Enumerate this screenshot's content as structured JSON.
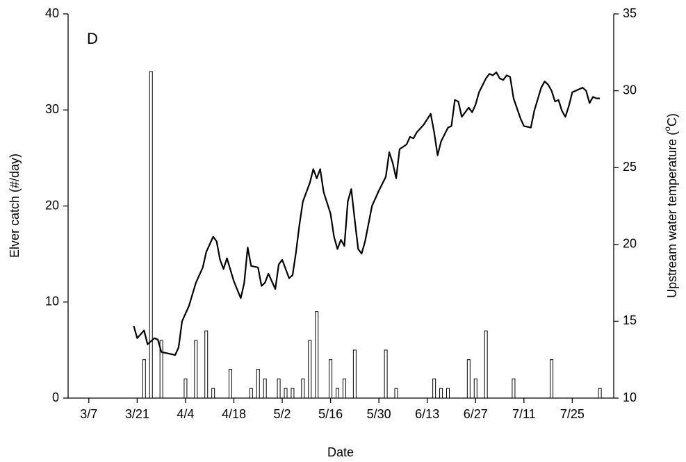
{
  "chart_data": {
    "type": "bar",
    "annotation": "D",
    "xlabel": "Date",
    "ylabel": "Elver catch (#/day)",
    "y2label": {
      "text": "Upstream water temperature (",
      "sup": "o",
      "tail": "C)"
    },
    "xlim": [
      "3/1",
      "8/6"
    ],
    "xticks": [
      "3/7",
      "3/21",
      "4/4",
      "4/18",
      "5/2",
      "5/16",
      "5/30",
      "6/13",
      "6/27",
      "7/11",
      "7/25"
    ],
    "ylim": [
      0,
      40
    ],
    "yticks": [
      0,
      10,
      20,
      30,
      40
    ],
    "y2lim": [
      10,
      35
    ],
    "y2ticks": [
      10,
      15,
      20,
      25,
      30,
      35
    ],
    "series": [
      {
        "type": "bar",
        "color": "#ffffff",
        "x": [
          "3/23",
          "3/25",
          "3/28",
          "4/4",
          "4/7",
          "4/10",
          "4/12",
          "4/17",
          "4/23",
          "4/25",
          "4/27",
          "5/1",
          "5/3",
          "5/5",
          "5/8",
          "5/10",
          "5/12",
          "5/16",
          "5/18",
          "5/20",
          "5/23",
          "6/1",
          "6/4",
          "6/15",
          "6/17",
          "6/19",
          "6/25",
          "6/27",
          "6/30",
          "7/8",
          "7/19",
          "8/2"
        ],
        "values": [
          4,
          34,
          6,
          2,
          6,
          7,
          1,
          3,
          1,
          3,
          2,
          2,
          1,
          1,
          2,
          6,
          9,
          4,
          1,
          2,
          5,
          5,
          1,
          2,
          1,
          1,
          4,
          2,
          7,
          2,
          4,
          1
        ]
      },
      {
        "type": "line",
        "axis": "y2",
        "color": "#000000",
        "x": [
          "3/20",
          "3/21",
          "3/23",
          "3/24",
          "3/26",
          "3/27",
          "3/28",
          "3/30",
          "4/1",
          "4/2",
          "4/3",
          "4/5",
          "4/7",
          "4/9",
          "4/10",
          "4/12",
          "4/13",
          "4/14",
          "4/15",
          "4/16",
          "4/18",
          "4/20",
          "4/21",
          "4/22",
          "4/23",
          "4/25",
          "4/26",
          "4/27",
          "4/28",
          "4/30",
          "5/1",
          "5/2",
          "5/4",
          "5/5",
          "5/6",
          "5/7",
          "5/8",
          "5/10",
          "5/11",
          "5/12",
          "5/13",
          "5/14",
          "5/16",
          "5/17",
          "5/18",
          "5/19",
          "5/20",
          "5/21",
          "5/22",
          "5/23",
          "5/24",
          "5/25",
          "5/26",
          "5/28",
          "5/30",
          "6/1",
          "6/2",
          "6/3",
          "6/4",
          "6/5",
          "6/7",
          "6/8",
          "6/9",
          "6/10",
          "6/12",
          "6/14",
          "6/15",
          "6/16",
          "6/17",
          "6/19",
          "6/20",
          "6/21",
          "6/22",
          "6/23",
          "6/25",
          "6/26",
          "6/27",
          "6/28",
          "6/30",
          "7/1",
          "7/2",
          "7/3",
          "7/4",
          "7/5",
          "7/6",
          "7/7",
          "7/8",
          "7/10",
          "7/11",
          "7/13",
          "7/14",
          "7/16",
          "7/17",
          "7/18",
          "7/19",
          "7/20",
          "7/21",
          "7/22",
          "7/23",
          "7/24",
          "7/25",
          "7/27",
          "7/28",
          "7/29",
          "7/30",
          "7/31",
          "8/1",
          "8/2"
        ],
        "values": [
          14.7,
          13.9,
          14.4,
          13.5,
          13.9,
          13.8,
          13.0,
          12.9,
          12.8,
          13.3,
          15.0,
          16.0,
          17.5,
          18.5,
          19.5,
          20.5,
          20.2,
          19.0,
          18.4,
          19.1,
          17.6,
          16.5,
          17.5,
          19.8,
          18.6,
          18.5,
          17.3,
          17.5,
          18.1,
          17.1,
          18.7,
          19.0,
          17.8,
          18.0,
          19.5,
          21.3,
          22.8,
          24.0,
          24.9,
          24.3,
          24.9,
          23.4,
          22.0,
          20.5,
          19.7,
          20.3,
          19.9,
          22.8,
          23.6,
          21.6,
          19.7,
          19.4,
          20.2,
          22.5,
          23.5,
          24.4,
          26.0,
          25.3,
          24.3,
          26.2,
          26.5,
          27.0,
          26.9,
          27.3,
          27.8,
          28.5,
          27.3,
          25.8,
          26.7,
          27.6,
          27.7,
          29.4,
          29.3,
          28.3,
          28.9,
          28.6,
          29.1,
          29.9,
          30.8,
          31.1,
          31.0,
          31.2,
          30.8,
          30.7,
          31.0,
          30.9,
          29.5,
          28.2,
          27.7,
          27.6,
          28.7,
          30.2,
          30.6,
          30.4,
          30.0,
          29.3,
          29.4,
          28.7,
          28.3,
          29.0,
          29.9,
          30.1,
          30.2,
          30.0,
          29.2,
          29.6,
          29.5,
          29.5
        ]
      }
    ]
  }
}
